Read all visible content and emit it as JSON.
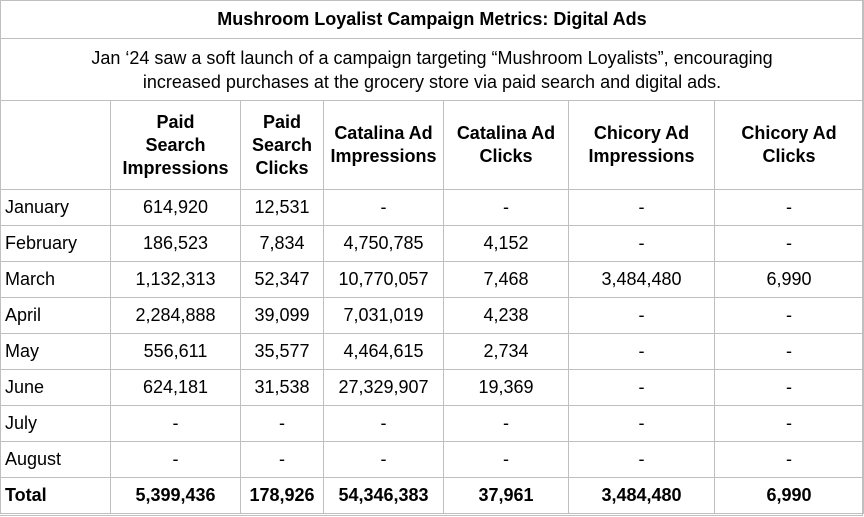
{
  "title": "Mushroom Loyalist Campaign Metrics: Digital Ads",
  "description": {
    "line1": "Jan ‘24 saw a soft launch of a campaign targeting “Mushroom Loyalists”, encouraging",
    "line2": "increased purchases at the grocery store via paid search and digital ads."
  },
  "columns": [
    {
      "key": "paid_search_impressions",
      "lines": [
        "Paid",
        "Search",
        "Impressions"
      ]
    },
    {
      "key": "paid_search_clicks",
      "lines": [
        "Paid",
        "Search",
        "Clicks"
      ]
    },
    {
      "key": "catalina_ad_impressions",
      "lines": [
        "Catalina Ad",
        "Impressions"
      ]
    },
    {
      "key": "catalina_ad_clicks",
      "lines": [
        "Catalina Ad",
        "Clicks"
      ]
    },
    {
      "key": "chicory_ad_impressions",
      "lines": [
        "Chicory Ad",
        "Impressions"
      ]
    },
    {
      "key": "chicory_ad_clicks",
      "lines": [
        "Chicory Ad",
        "Clicks"
      ]
    }
  ],
  "rows": [
    {
      "month": "January",
      "values": [
        "614,920",
        "12,531",
        "-",
        "-",
        "-",
        "-"
      ]
    },
    {
      "month": "February",
      "values": [
        "186,523",
        "7,834",
        "4,750,785",
        "4,152",
        "-",
        "-"
      ]
    },
    {
      "month": "March",
      "values": [
        "1,132,313",
        "52,347",
        "10,770,057",
        "7,468",
        "3,484,480",
        "6,990"
      ]
    },
    {
      "month": "April",
      "values": [
        "2,284,888",
        "39,099",
        "7,031,019",
        "4,238",
        "-",
        "-"
      ]
    },
    {
      "month": "May",
      "values": [
        "556,611",
        "35,577",
        "4,464,615",
        "2,734",
        "-",
        "-"
      ]
    },
    {
      "month": "June",
      "values": [
        "624,181",
        "31,538",
        "27,329,907",
        "19,369",
        "-",
        "-"
      ]
    },
    {
      "month": "July",
      "values": [
        "-",
        "-",
        "-",
        "-",
        "-",
        "-"
      ]
    },
    {
      "month": "August",
      "values": [
        "-",
        "-",
        "-",
        "-",
        "-",
        "-"
      ]
    }
  ],
  "total": {
    "label": "Total",
    "values": [
      "5,399,436",
      "178,926",
      "54,346,383",
      "37,961",
      "3,484,480",
      "6,990"
    ]
  }
}
